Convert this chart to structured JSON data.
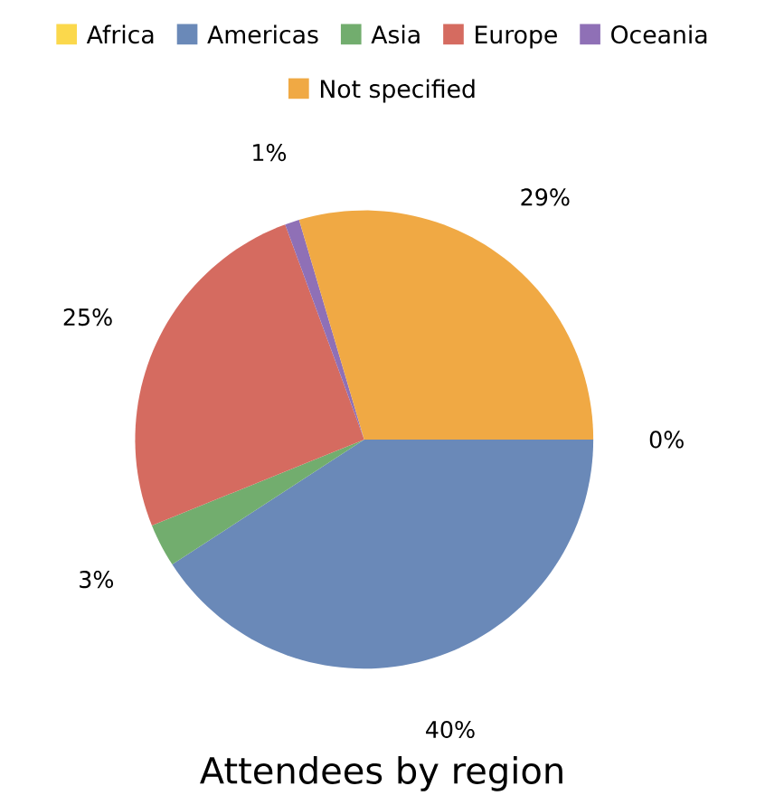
{
  "chart_data": {
    "type": "pie",
    "title": "Attendees by region",
    "categories": [
      "Africa",
      "Americas",
      "Asia",
      "Europe",
      "Oceania",
      "Not specified"
    ],
    "values": [
      0,
      40,
      3,
      25,
      1,
      29
    ],
    "colors": [
      "#fbd84c",
      "#6a89b8",
      "#72ad6e",
      "#d56b60",
      "#8f70b6",
      "#f0a944"
    ],
    "value_labels": [
      "0%",
      "40%",
      "3%",
      "25%",
      "1%",
      "29%"
    ],
    "legend": "top"
  }
}
